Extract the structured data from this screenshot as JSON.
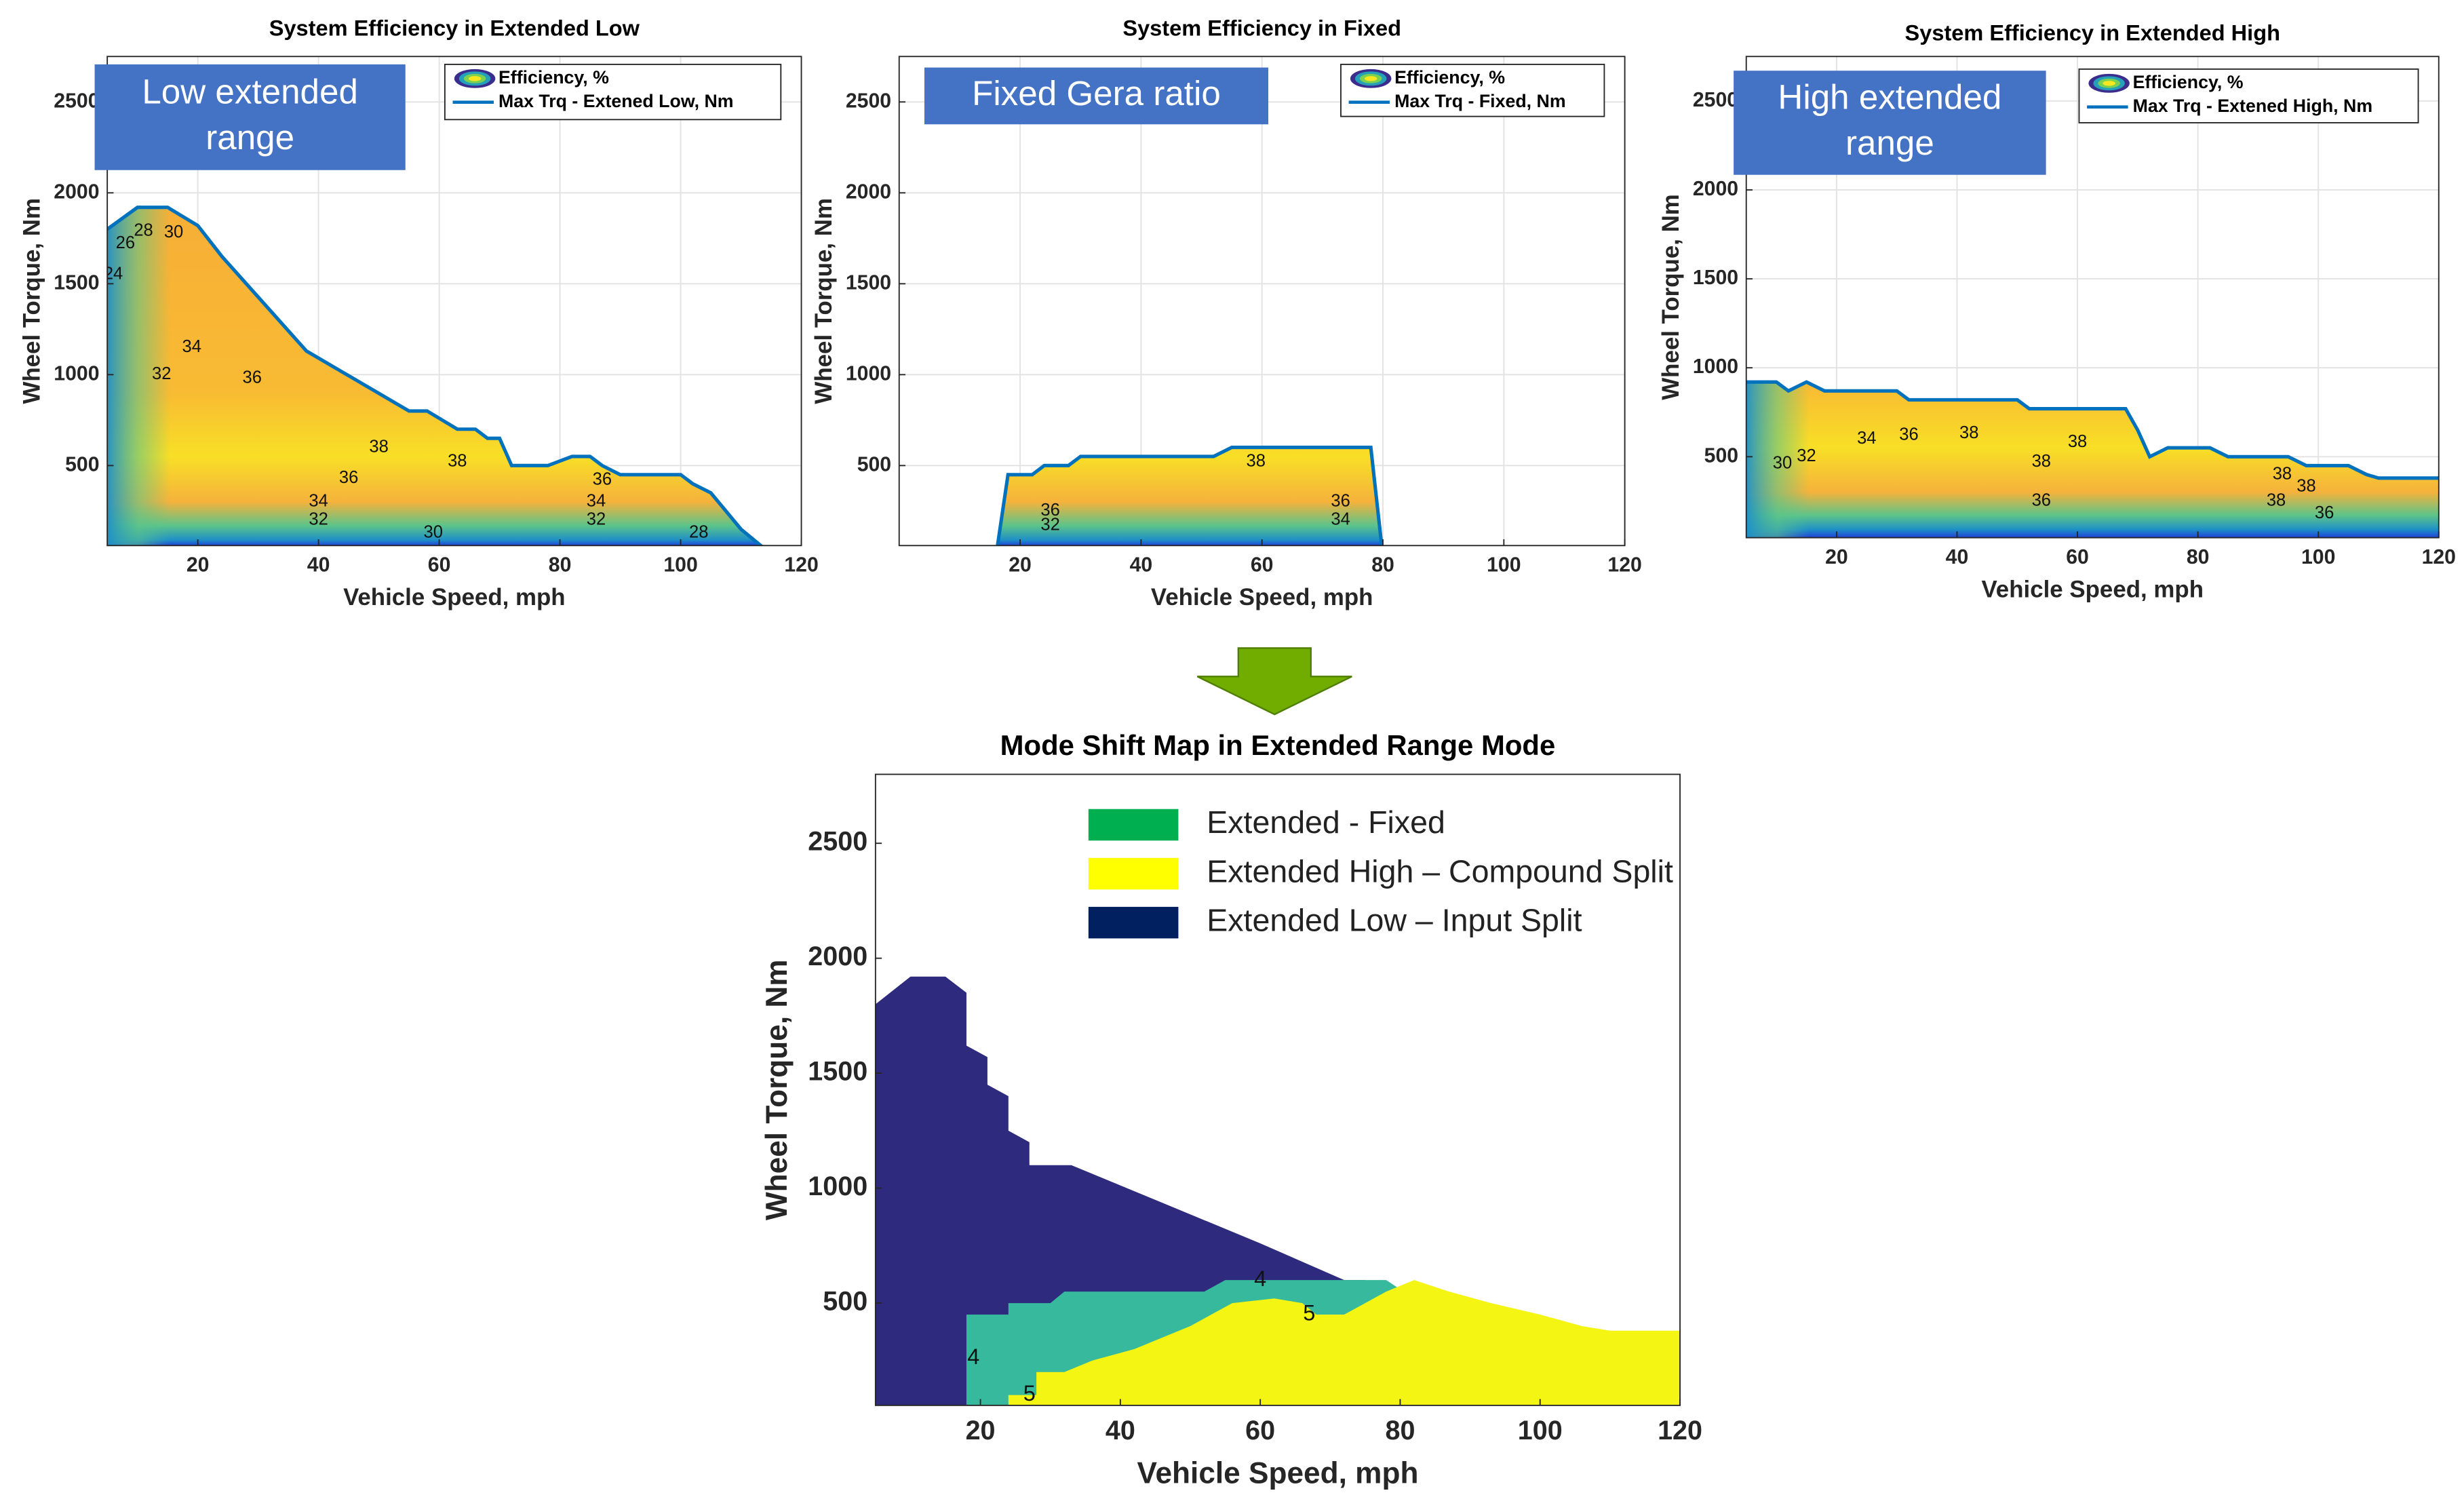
{
  "chart_data": [
    {
      "type": "contour",
      "title": "System Efficiency in Extended Low",
      "xlabel": "Vehicle Speed, mph",
      "ylabel": "Wheel Torque, Nm",
      "xlim": [
        5,
        120
      ],
      "ylim": [
        60,
        2750
      ],
      "xticks": [
        20,
        40,
        60,
        80,
        100,
        120
      ],
      "yticks": [
        500,
        1000,
        1500,
        2000,
        2500
      ],
      "grid": true,
      "callout": [
        "Low extended",
        "range"
      ],
      "fill_legend": "Efficiency, %",
      "series": [
        {
          "name": "Max Trq - Extened Low, Nm",
          "color": "#0072bd",
          "x": [
            5,
            10,
            15,
            20,
            24,
            38,
            55,
            58,
            63,
            66,
            68,
            70,
            72,
            78,
            82,
            85,
            87,
            90,
            95,
            100,
            102,
            105,
            110,
            114
          ],
          "values": [
            1800,
            1920,
            1920,
            1820,
            1650,
            1130,
            800,
            800,
            700,
            700,
            650,
            650,
            500,
            500,
            550,
            550,
            500,
            450,
            450,
            450,
            400,
            350,
            150,
            40
          ]
        }
      ],
      "contour_labels": [
        {
          "text": "24",
          "x": 6,
          "y": 1550
        },
        {
          "text": "26",
          "x": 8,
          "y": 1720
        },
        {
          "text": "28",
          "x": 11,
          "y": 1790
        },
        {
          "text": "30",
          "x": 16,
          "y": 1780
        },
        {
          "text": "32",
          "x": 14,
          "y": 1000
        },
        {
          "text": "34",
          "x": 19,
          "y": 1150
        },
        {
          "text": "36",
          "x": 29,
          "y": 980
        },
        {
          "text": "38",
          "x": 50,
          "y": 600
        },
        {
          "text": "38",
          "x": 63,
          "y": 520
        },
        {
          "text": "36",
          "x": 45,
          "y": 430
        },
        {
          "text": "34",
          "x": 40,
          "y": 300
        },
        {
          "text": "32",
          "x": 40,
          "y": 200
        },
        {
          "text": "36",
          "x": 87,
          "y": 420
        },
        {
          "text": "34",
          "x": 86,
          "y": 300
        },
        {
          "text": "32",
          "x": 86,
          "y": 200
        },
        {
          "text": "30",
          "x": 59,
          "y": 130
        },
        {
          "text": "28",
          "x": 103,
          "y": 130
        }
      ]
    },
    {
      "type": "contour",
      "title": "System Efficiency in Fixed",
      "xlabel": "Vehicle Speed, mph",
      "ylabel": "Wheel Torque, Nm",
      "xlim": [
        0,
        120
      ],
      "ylim": [
        60,
        2750
      ],
      "xticks": [
        20,
        40,
        60,
        80,
        100,
        120
      ],
      "yticks": [
        500,
        1000,
        1500,
        2000,
        2500
      ],
      "grid": true,
      "callout": [
        "Fixed Gera ratio"
      ],
      "fill_legend": "Efficiency, %",
      "series": [
        {
          "name": "Max Trq - Fixed, Nm",
          "color": "#0072bd",
          "x": [
            16,
            18,
            22,
            24,
            28,
            30,
            52,
            55,
            78,
            80
          ],
          "values": [
            0,
            450,
            450,
            500,
            500,
            550,
            550,
            600,
            600,
            0
          ]
        }
      ],
      "contour_labels": [
        {
          "text": "38",
          "x": 59,
          "y": 520
        },
        {
          "text": "36",
          "x": 25,
          "y": 250
        },
        {
          "text": "36",
          "x": 73,
          "y": 300
        },
        {
          "text": "34",
          "x": 73,
          "y": 200
        },
        {
          "text": "32",
          "x": 25,
          "y": 170
        }
      ]
    },
    {
      "type": "contour",
      "title": "System Efficiency in Extended High",
      "xlabel": "Vehicle Speed, mph",
      "ylabel": "Wheel Torque, Nm",
      "xlim": [
        5,
        120
      ],
      "ylim": [
        45,
        2750
      ],
      "xticks": [
        20,
        40,
        60,
        80,
        100,
        120
      ],
      "yticks": [
        500,
        1000,
        1500,
        2000,
        2500
      ],
      "grid": true,
      "callout": [
        "High extended",
        "range"
      ],
      "fill_legend": "Efficiency, %",
      "series": [
        {
          "name": "Max Trq - Extened High, Nm",
          "color": "#0072bd",
          "x": [
            5,
            10,
            12,
            15,
            18,
            30,
            32,
            50,
            52,
            68,
            70,
            72,
            75,
            82,
            85,
            95,
            98,
            105,
            108,
            110,
            120
          ],
          "values": [
            920,
            920,
            870,
            920,
            870,
            870,
            820,
            820,
            770,
            770,
            650,
            500,
            550,
            550,
            500,
            500,
            450,
            450,
            400,
            380,
            380
          ]
        }
      ],
      "contour_labels": [
        {
          "text": "30",
          "x": 11,
          "y": 460
        },
        {
          "text": "32",
          "x": 15,
          "y": 500
        },
        {
          "text": "34",
          "x": 25,
          "y": 600
        },
        {
          "text": "36",
          "x": 32,
          "y": 620
        },
        {
          "text": "38",
          "x": 42,
          "y": 630
        },
        {
          "text": "38",
          "x": 60,
          "y": 580
        },
        {
          "text": "38",
          "x": 54,
          "y": 470
        },
        {
          "text": "36",
          "x": 54,
          "y": 250
        },
        {
          "text": "38",
          "x": 94,
          "y": 400
        },
        {
          "text": "38",
          "x": 98,
          "y": 330
        },
        {
          "text": "38",
          "x": 93,
          "y": 250
        },
        {
          "text": "36",
          "x": 101,
          "y": 180
        }
      ]
    },
    {
      "type": "region_map",
      "title": "Mode Shift Map in Extended Range Mode",
      "xlabel": "Vehicle Speed, mph",
      "ylabel": "Wheel Torque, Nm",
      "xlim": [
        5,
        120
      ],
      "ylim": [
        55,
        2800
      ],
      "xticks": [
        20,
        40,
        60,
        80,
        100,
        120
      ],
      "yticks": [
        500,
        1000,
        1500,
        2000,
        2500
      ],
      "grid": false,
      "series": [
        {
          "name": "Extended - Fixed",
          "color": "#00b050"
        },
        {
          "name": "Extended High – Compound  Split",
          "color": "#ffff00"
        },
        {
          "name": "Extended Low – Input Split",
          "color": "#002060"
        }
      ],
      "regions": [
        {
          "color": "#2e2a7e",
          "x": [
            5,
            5,
            10,
            15,
            18,
            18,
            21,
            21,
            24,
            24,
            27,
            27,
            33,
            60,
            72,
            75,
            75
          ],
          "values": [
            55,
            1800,
            1920,
            1920,
            1850,
            1620,
            1570,
            1450,
            1400,
            1250,
            1200,
            1100,
            1100,
            760,
            600,
            600,
            55
          ]
        },
        {
          "color": "#36b99c",
          "x": [
            18,
            18,
            24,
            24,
            30,
            32,
            52,
            55,
            78,
            80,
            80
          ],
          "values": [
            55,
            450,
            450,
            500,
            500,
            550,
            550,
            600,
            600,
            560,
            55
          ]
        },
        {
          "color": "#f4f512",
          "x": [
            24,
            24,
            28,
            28,
            32,
            36,
            42,
            46,
            50,
            53,
            56,
            62,
            66,
            68,
            72,
            75,
            78,
            82,
            87,
            93,
            100,
            106,
            110,
            120,
            120
          ],
          "values": [
            55,
            100,
            100,
            200,
            200,
            250,
            300,
            350,
            400,
            450,
            500,
            520,
            500,
            450,
            450,
            500,
            550,
            600,
            550,
            500,
            450,
            400,
            380,
            380,
            55
          ]
        }
      ],
      "contour_labels": [
        {
          "text": "4",
          "x": 60,
          "y": 600
        },
        {
          "text": "4",
          "x": 19,
          "y": 260
        },
        {
          "text": "5",
          "x": 67,
          "y": 450
        },
        {
          "text": "5",
          "x": 27,
          "y": 100
        }
      ]
    }
  ]
}
